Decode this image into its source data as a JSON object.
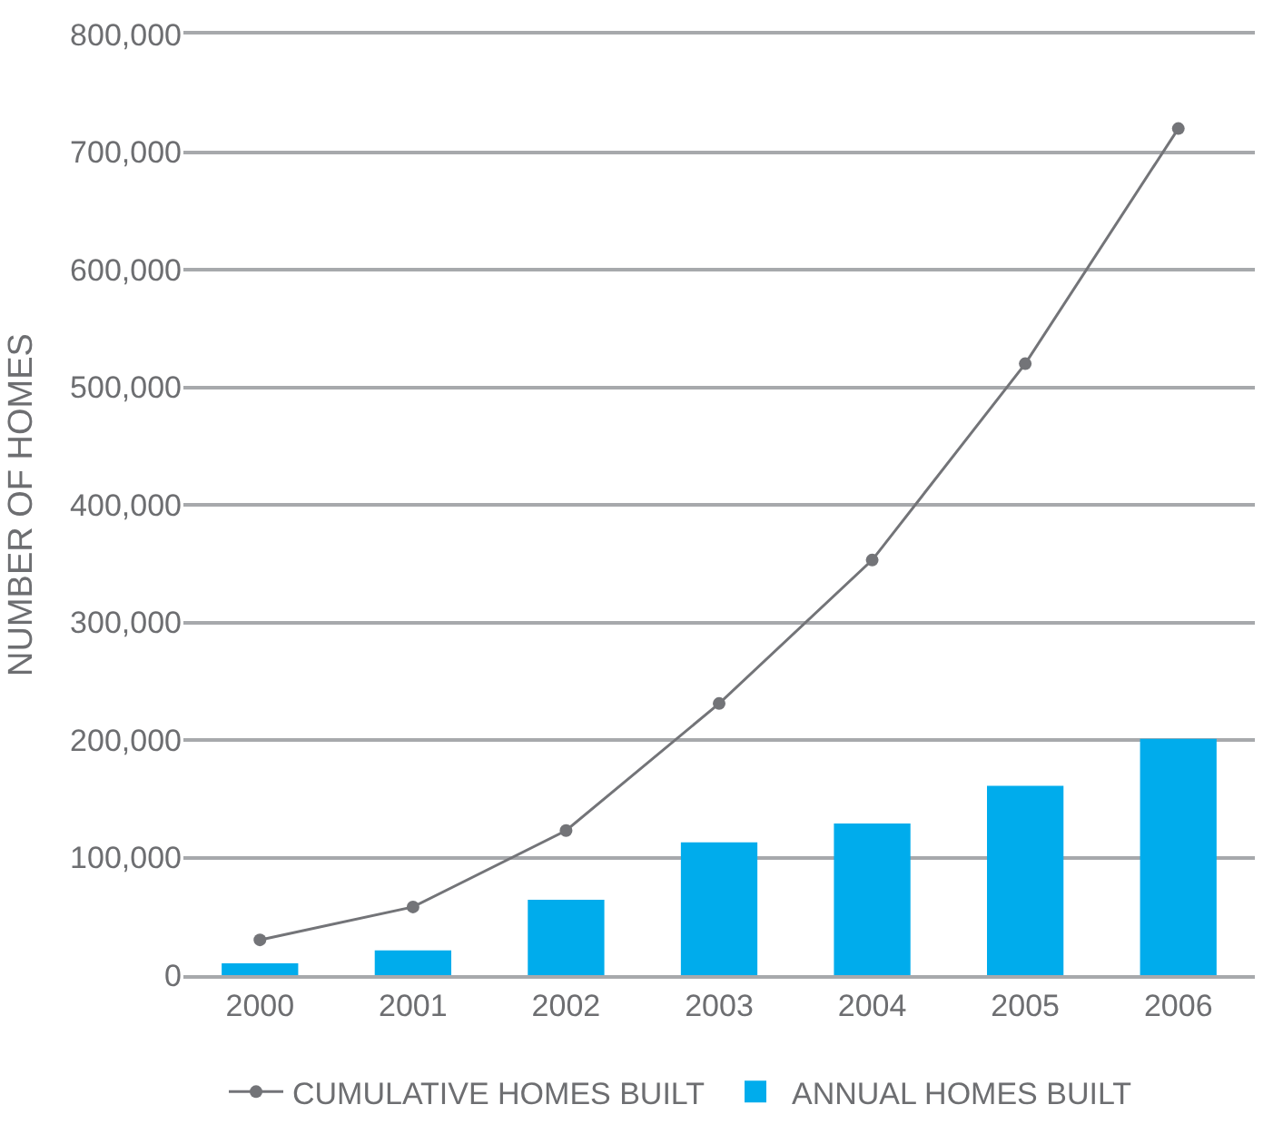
{
  "chart_data": {
    "type": "bar",
    "ylabel": "NUMBER OF HOMES",
    "categories": [
      "2000",
      "2001",
      "2002",
      "2003",
      "2004",
      "2005",
      "2006"
    ],
    "series": [
      {
        "name": "CUMULATIVE HOMES BUILT",
        "type": "line",
        "color": "#737478",
        "marker": "circle",
        "values": [
          30000,
          58000,
          123000,
          231000,
          353000,
          520000,
          720000
        ]
      },
      {
        "name": "ANNUAL HOMES BUILT",
        "color": "#00acec",
        "values": [
          10000,
          21000,
          64000,
          113000,
          129000,
          161000,
          201000
        ]
      }
    ],
    "ylim": [
      0,
      800000
    ],
    "yticks": [
      {
        "value": 0,
        "label": "0"
      },
      {
        "value": 100000,
        "label": "100,000"
      },
      {
        "value": 200000,
        "label": "200,000"
      },
      {
        "value": 300000,
        "label": "300,000"
      },
      {
        "value": 400000,
        "label": "400,000"
      },
      {
        "value": 500000,
        "label": "500,000"
      },
      {
        "value": 600000,
        "label": "600,000"
      },
      {
        "value": 700000,
        "label": "700,000"
      },
      {
        "value": 800000,
        "label": "800,000"
      }
    ],
    "grid": "y",
    "legend": "bottom"
  }
}
